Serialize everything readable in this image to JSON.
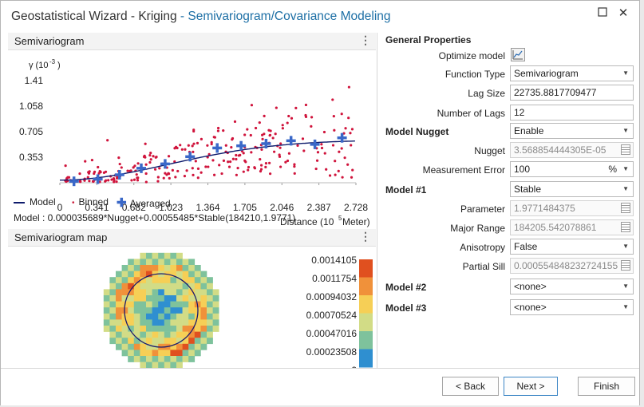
{
  "window": {
    "title_main": "Geostatistical Wizard - Kriging",
    "title_sub": " - Semivariogram/Covariance Modeling"
  },
  "semivariogram_panel": {
    "title": "Semivariogram",
    "y_label": "γ (10",
    "y_label_exp": "-3",
    "y_label_end": ")",
    "y_ticks": [
      "1.41",
      "1.058",
      "0.705",
      "0.353"
    ],
    "x_ticks": [
      "0",
      "0.341",
      "0.682",
      "1.023",
      "1.364",
      "1.705",
      "2.046",
      "2.387",
      "2.728"
    ],
    "x_label": "Distance (10",
    "x_label_exp": "5",
    "x_label_end": " Meter)",
    "legend": {
      "model": "Model",
      "binned": "Binned",
      "averaged": "Averaged"
    },
    "model_equation": "Model : 0.000035689*Nugget+0.00055485*Stable(184210,1.9771)"
  },
  "chart_data": {
    "type": "scatter",
    "xlabel": "Distance (10^5 Meter)",
    "ylabel": "γ (10^-3)",
    "xlim": [
      0,
      2.728
    ],
    "ylim": [
      0,
      1.41
    ],
    "series": [
      {
        "name": "Averaged",
        "x": [
          0.13,
          0.35,
          0.55,
          0.75,
          0.97,
          1.2,
          1.45,
          1.67,
          1.9,
          2.13,
          2.35,
          2.6
        ],
        "y": [
          0.02,
          0.05,
          0.11,
          0.2,
          0.26,
          0.36,
          0.48,
          0.51,
          0.54,
          0.58,
          0.53,
          0.62
        ]
      },
      {
        "name": "Model",
        "x": [
          0,
          0.2,
          0.4,
          0.6,
          0.8,
          1.0,
          1.2,
          1.4,
          1.6,
          1.8,
          2.0,
          2.2,
          2.4,
          2.6,
          2.728
        ],
        "y": [
          0.036,
          0.045,
          0.07,
          0.11,
          0.16,
          0.22,
          0.29,
          0.36,
          0.42,
          0.47,
          0.51,
          0.54,
          0.56,
          0.575,
          0.58
        ]
      }
    ]
  },
  "map_panel": {
    "title": "Semivariogram map",
    "scale_labels": [
      "0.0014105",
      "0.0011754",
      "0.00094032",
      "0.00070524",
      "0.00047016",
      "0.00023508",
      "0"
    ],
    "scale_colors": [
      "#e0501f",
      "#f0913a",
      "#f6cf56",
      "#d2dc86",
      "#7ec29c",
      "#2f8fd0"
    ]
  },
  "properties": {
    "general_header": "General Properties",
    "optimize_label": "Optimize model",
    "function_type_label": "Function Type",
    "function_type_value": "Semivariogram",
    "lag_size_label": "Lag Size",
    "lag_size_value": "22735.8817709477",
    "num_lags_label": "Number of Lags",
    "num_lags_value": "12",
    "nugget_header": "Model Nugget",
    "nugget_enable_value": "Enable",
    "nugget_label": "Nugget",
    "nugget_value": "3.568854444305E-05",
    "measurement_error_label": "Measurement Error",
    "measurement_error_value": "100",
    "measurement_error_unit": "%",
    "model1_header": "Model #1",
    "model1_value": "Stable",
    "parameter_label": "Parameter",
    "parameter_value": "1.9771484375",
    "major_range_label": "Major Range",
    "major_range_value": "184205.542078861",
    "anisotropy_label": "Anisotropy",
    "anisotropy_value": "False",
    "partial_sill_label": "Partial Sill",
    "partial_sill_value": "0.000554848232724155",
    "model2_header": "Model #2",
    "model2_value": "<none>",
    "model3_header": "Model #3",
    "model3_value": "<none>"
  },
  "footer": {
    "back": "< Back",
    "next": "Next >",
    "finish": "Finish"
  }
}
